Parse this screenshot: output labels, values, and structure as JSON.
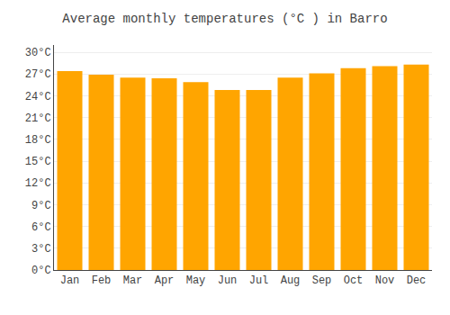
{
  "chart_data": {
    "type": "bar",
    "title": "Average monthly temperatures (°C ) in Barro",
    "categories": [
      "Jan",
      "Feb",
      "Mar",
      "Apr",
      "May",
      "Jun",
      "Jul",
      "Aug",
      "Sep",
      "Oct",
      "Nov",
      "Dec"
    ],
    "values": [
      27.4,
      26.9,
      26.5,
      26.4,
      25.9,
      24.8,
      24.8,
      26.5,
      27.1,
      27.8,
      28.1,
      28.3
    ],
    "color": "#FFA500",
    "ylim": [
      0,
      31
    ],
    "yticks": [
      {
        "value": 0,
        "label": "0°C"
      },
      {
        "value": 3,
        "label": "3°C"
      },
      {
        "value": 6,
        "label": "6°C"
      },
      {
        "value": 9,
        "label": "9°C"
      },
      {
        "value": 12,
        "label": "12°C"
      },
      {
        "value": 15,
        "label": "15°C"
      },
      {
        "value": 18,
        "label": "18°C"
      },
      {
        "value": 21,
        "label": "21°C"
      },
      {
        "value": 24,
        "label": "24°C"
      },
      {
        "value": 27,
        "label": "27°C"
      },
      {
        "value": 30,
        "label": "30°C"
      }
    ],
    "grid": true
  }
}
